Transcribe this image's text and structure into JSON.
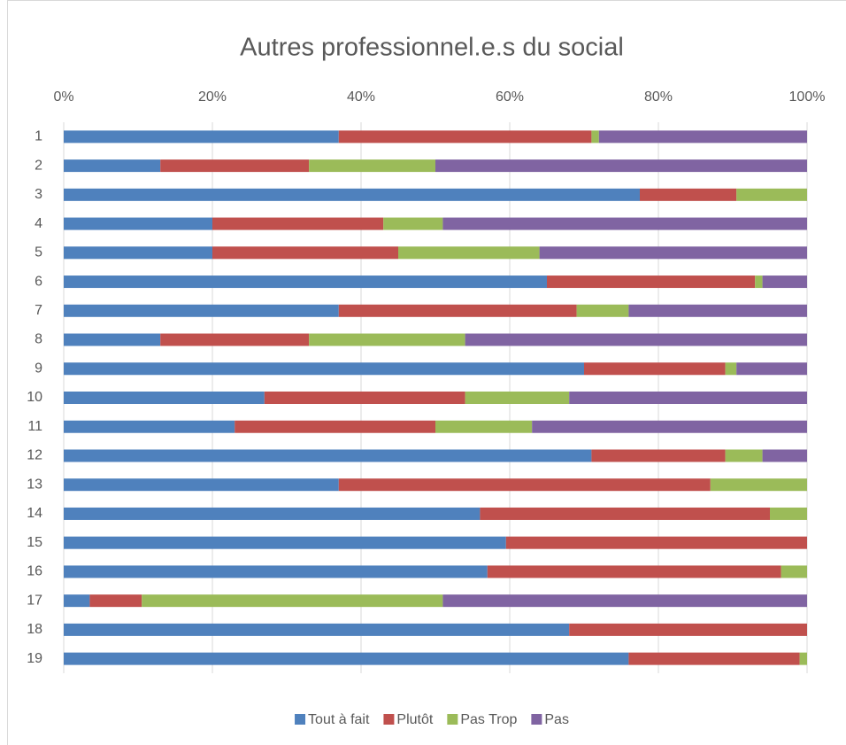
{
  "chart_data": {
    "type": "stacked-barh",
    "title": "Autres professionnel.e.s du social",
    "categories": [
      "1",
      "2",
      "3",
      "4",
      "5",
      "6",
      "7",
      "8",
      "9",
      "10",
      "11",
      "12",
      "13",
      "14",
      "15",
      "16",
      "17",
      "18",
      "19"
    ],
    "series": [
      {
        "name": "Tout à fait",
        "color": "#4f81bd",
        "values": [
          37,
          13,
          77.5,
          20,
          20,
          65,
          37,
          13,
          70,
          27,
          23,
          71,
          37,
          56,
          59.5,
          57,
          3.5,
          68,
          76
        ]
      },
      {
        "name": "Plutôt",
        "color": "#c0504d",
        "values": [
          34,
          20,
          13,
          23,
          25,
          28,
          32,
          20,
          19,
          27,
          27,
          18,
          50,
          39,
          40.5,
          39.5,
          7,
          32,
          23
        ]
      },
      {
        "name": "Pas Trop",
        "color": "#9bbb59",
        "values": [
          1,
          17,
          9.5,
          8,
          19,
          1,
          7,
          21,
          1.5,
          14,
          13,
          5,
          13,
          5,
          0,
          3.5,
          40.5,
          0,
          1
        ]
      },
      {
        "name": "Pas",
        "color": "#8064a2",
        "values": [
          28,
          50,
          0,
          49,
          36,
          6,
          24,
          46,
          9.5,
          32,
          37,
          6,
          0,
          0,
          0,
          0,
          49,
          0,
          0
        ]
      }
    ],
    "xlim": [
      0,
      100
    ],
    "xticks": [
      {
        "value": 0,
        "label": "0%"
      },
      {
        "value": 20,
        "label": "20%"
      },
      {
        "value": 40,
        "label": "40%"
      },
      {
        "value": 60,
        "label": "60%"
      },
      {
        "value": 80,
        "label": "80%"
      },
      {
        "value": 100,
        "label": "100%"
      }
    ],
    "grid": true,
    "legend": "bottom"
  }
}
